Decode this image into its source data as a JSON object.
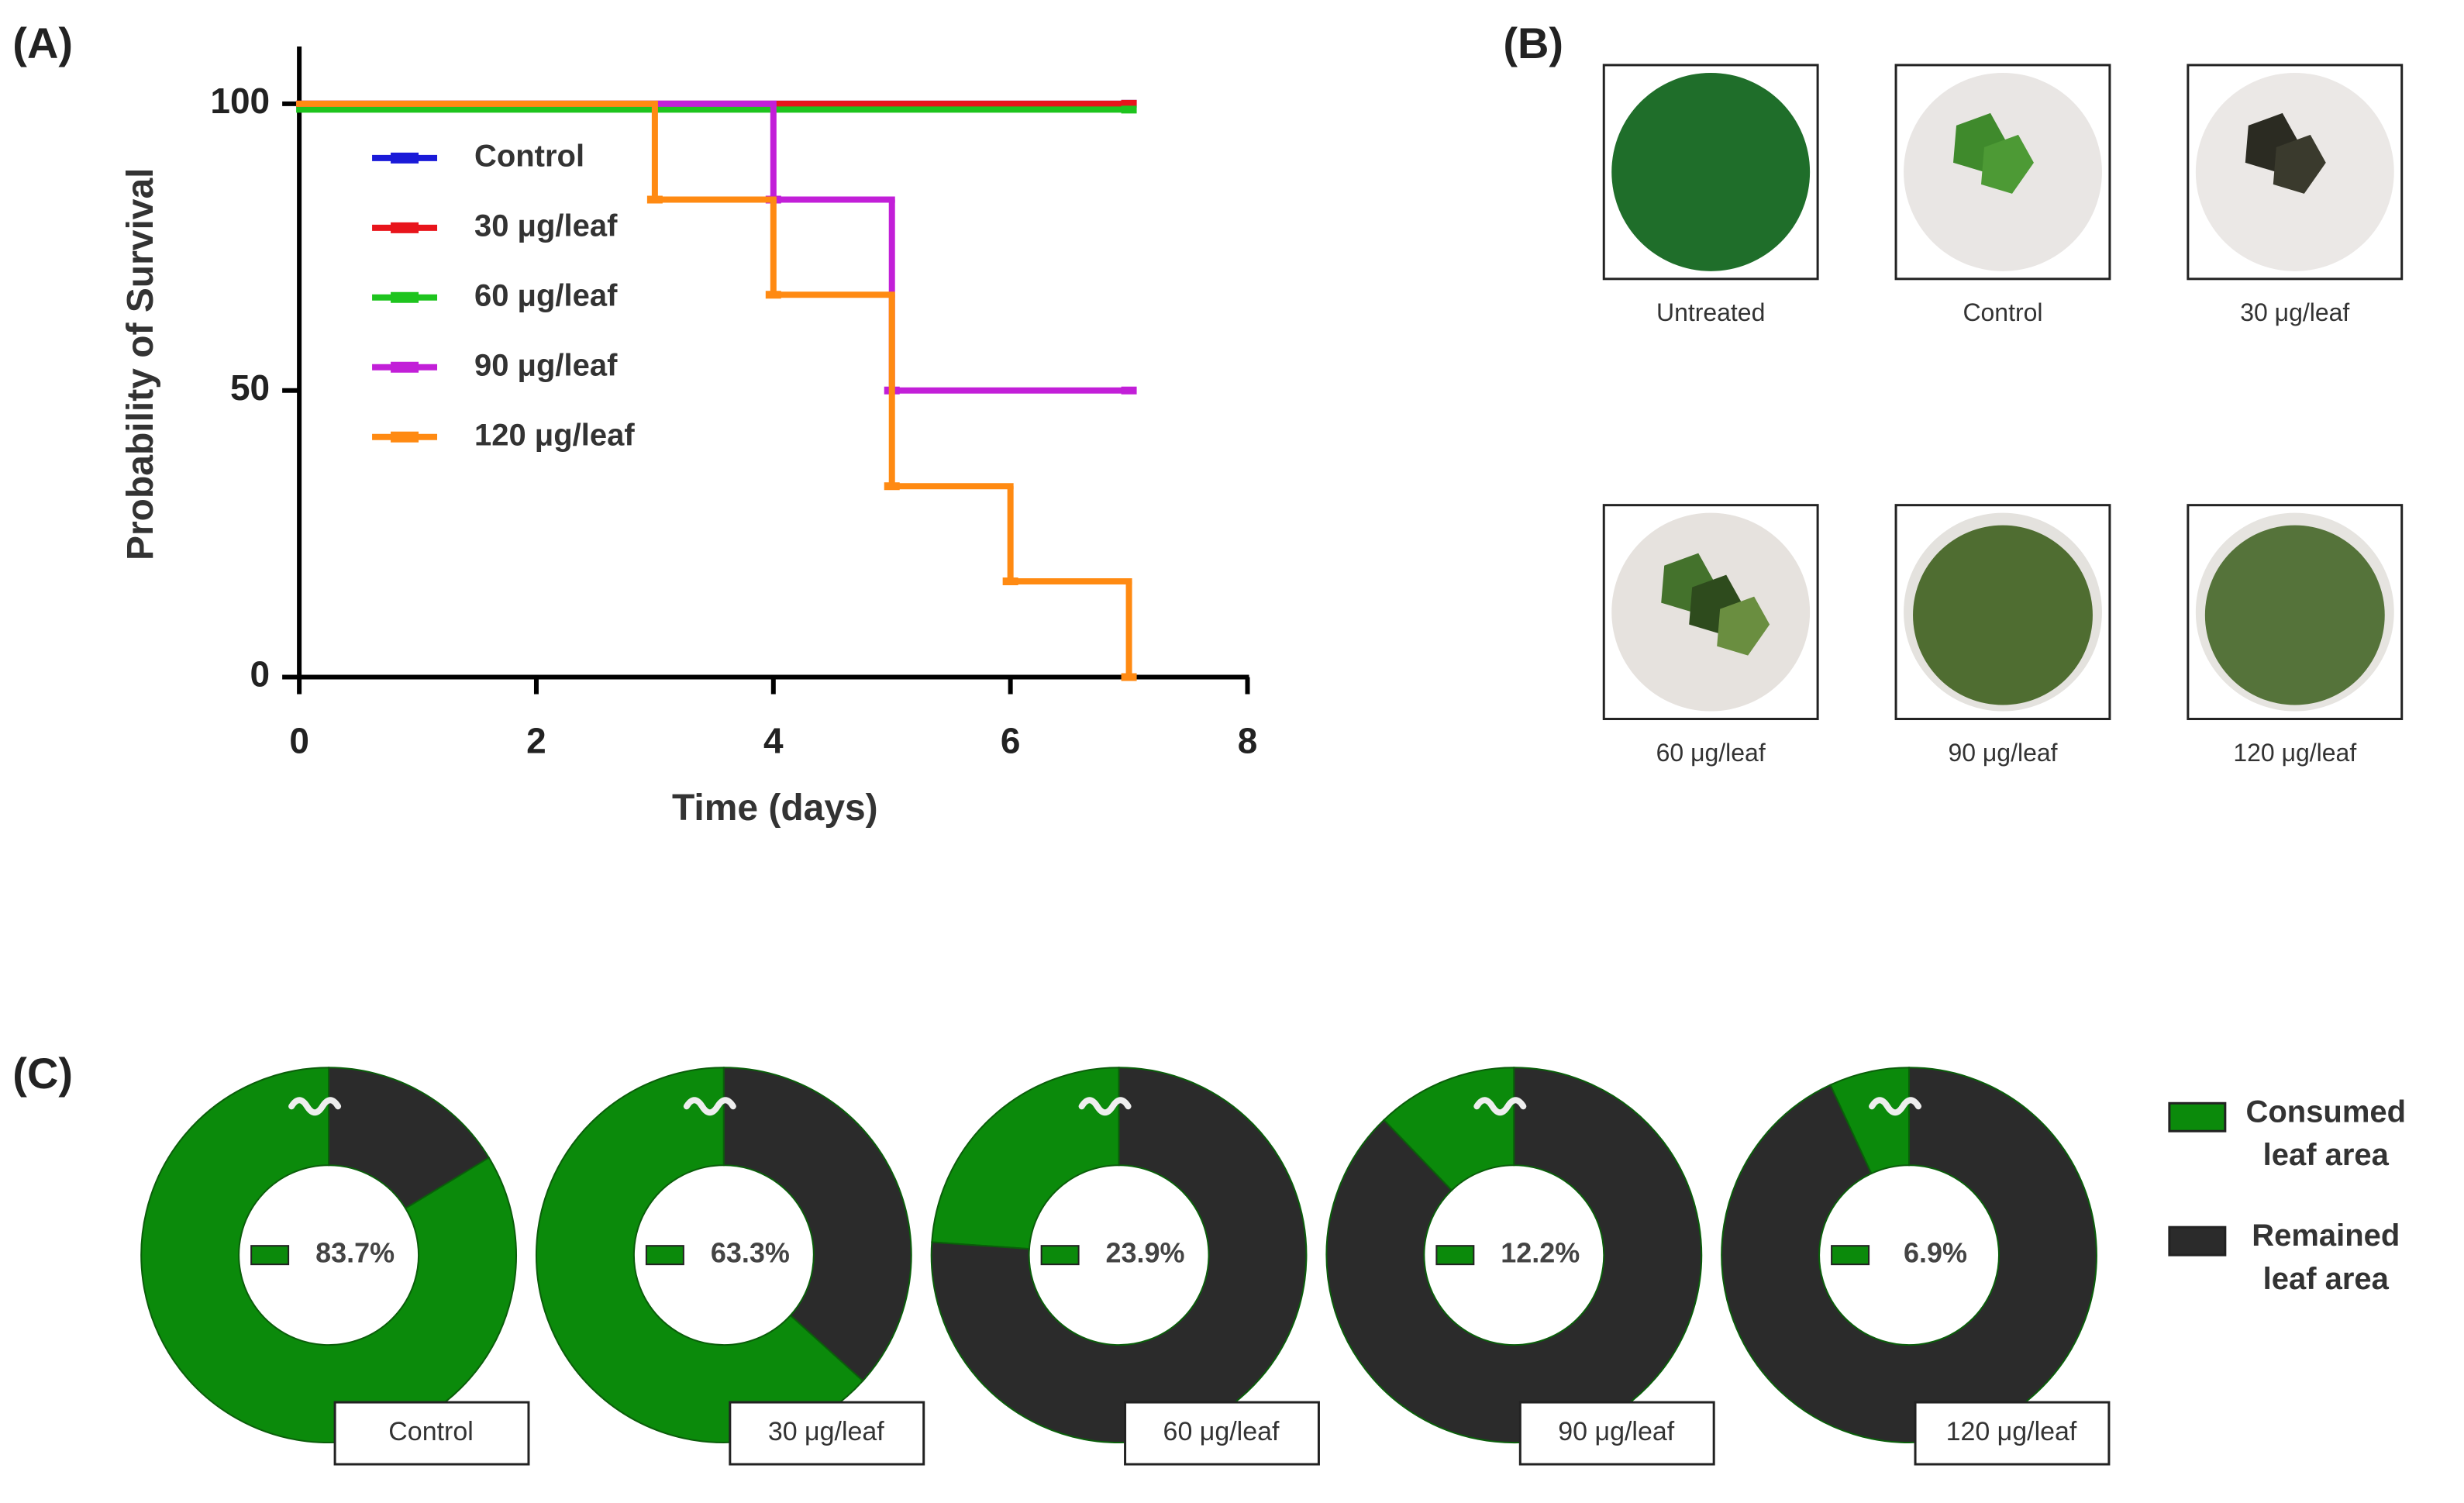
{
  "panel_labels": [
    "(A)",
    "(B)",
    "(C)"
  ],
  "chart_data": [
    {
      "type": "line",
      "xlabel": "Time (days)",
      "ylabel": "Probability of Survival",
      "xlim": [
        0,
        8
      ],
      "xticks": [
        0,
        2,
        4,
        6,
        8
      ],
      "ylim": [
        0,
        110
      ],
      "yticks": [
        0,
        50,
        100
      ],
      "series": [
        {
          "name": "Control",
          "color": "#1a1ad8",
          "x": [
            0,
            7
          ],
          "values": [
            100,
            100
          ]
        },
        {
          "name": "30 μg/leaf",
          "color": "#e8141b",
          "x": [
            0,
            7
          ],
          "values": [
            100,
            100
          ]
        },
        {
          "name": "60 μg/leaf",
          "color": "#1ec41e",
          "x": [
            0,
            7
          ],
          "values": [
            99,
            99
          ]
        },
        {
          "name": "90 μg/leaf",
          "color": "#c21fd8",
          "x": [
            0,
            4,
            5,
            7
          ],
          "values": [
            100,
            83.3,
            50,
            50
          ]
        },
        {
          "name": "120 μg/leaf",
          "color": "#ff8a12",
          "x": [
            0,
            3,
            4,
            5,
            6,
            7
          ],
          "values": [
            100,
            83.3,
            66.7,
            33.3,
            16.7,
            0
          ]
        }
      ]
    },
    {
      "type": "pie",
      "title": "Control",
      "values": [
        83.7,
        16.3
      ],
      "value_labels": [
        "83.7%",
        null
      ]
    },
    {
      "type": "pie",
      "title": "30 μg/leaf",
      "values": [
        63.3,
        36.7
      ],
      "value_labels": [
        "63.3%",
        null
      ]
    },
    {
      "type": "pie",
      "title": "60 μg/leaf",
      "values": [
        23.9,
        76.1
      ],
      "value_labels": [
        "23.9%",
        null
      ]
    },
    {
      "type": "pie",
      "title": "90 μg/leaf",
      "values": [
        12.2,
        87.8
      ],
      "value_labels": [
        "12.2%",
        null
      ]
    },
    {
      "type": "pie",
      "title": "120 μg/leaf",
      "values": [
        6.9,
        93.1
      ],
      "value_labels": [
        "6.9%",
        null
      ]
    }
  ],
  "donut_legend": [
    {
      "name": "Consumed leaf area",
      "color": "#0b8a0b"
    },
    {
      "name": "Remained leaf area",
      "color": "#2b2b2b"
    }
  ],
  "photos": {
    "labels": [
      "Untreated",
      "Control",
      "30 μg/leaf",
      "60 μg/leaf",
      "90 μg/leaf",
      "120 μg/leaf"
    ]
  }
}
